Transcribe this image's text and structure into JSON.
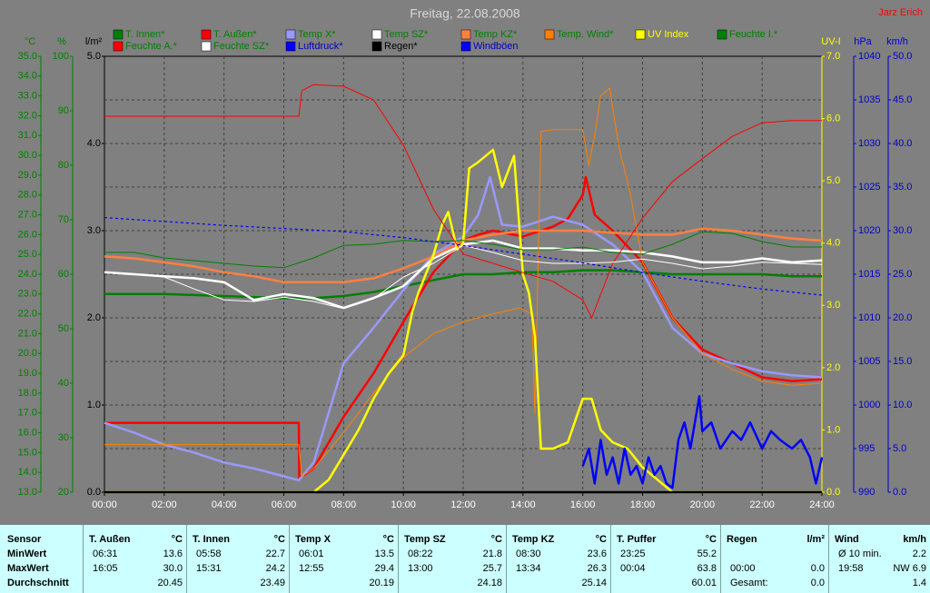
{
  "chart_data": {
    "type": "line",
    "title": "Freitag, 22.08.2008",
    "author": "Jarz Erich",
    "xlim": [
      0,
      24
    ],
    "xticks": [
      {
        "value": 0,
        "label": "00:00"
      },
      {
        "value": 2,
        "label": "02:00"
      },
      {
        "value": 4,
        "label": "04:00"
      },
      {
        "value": 6,
        "label": "06:00"
      },
      {
        "value": 8,
        "label": "08:00"
      },
      {
        "value": 10,
        "label": "10:00"
      },
      {
        "value": 12,
        "label": "12:00"
      },
      {
        "value": 14,
        "label": "14:00"
      },
      {
        "value": 16,
        "label": "16:00"
      },
      {
        "value": 18,
        "label": "18:00"
      },
      {
        "value": 20,
        "label": "20:00"
      },
      {
        "value": 22,
        "label": "22:00"
      },
      {
        "value": 24,
        "label": "24:00"
      }
    ],
    "axes": [
      {
        "label": "°C",
        "color": "#008000",
        "side": "left",
        "lim": [
          13,
          35
        ],
        "ticks": [
          {
            "value": 13,
            "label": "13.0"
          },
          {
            "value": 14,
            "label": "14.0"
          },
          {
            "value": 15,
            "label": "15.0"
          },
          {
            "value": 16,
            "label": "16.0"
          },
          {
            "value": 17,
            "label": "17.0"
          },
          {
            "value": 18,
            "label": "18.0"
          },
          {
            "value": 19,
            "label": "19.0"
          },
          {
            "value": 20,
            "label": "20.0"
          },
          {
            "value": 21,
            "label": "21.0"
          },
          {
            "value": 22,
            "label": "22.0"
          },
          {
            "value": 23,
            "label": "23.0"
          },
          {
            "value": 24,
            "label": "24.0"
          },
          {
            "value": 25,
            "label": "25.0"
          },
          {
            "value": 26,
            "label": "26.0"
          },
          {
            "value": 27,
            "label": "27.0"
          },
          {
            "value": 28,
            "label": "28.0"
          },
          {
            "value": 29,
            "label": "29.0"
          },
          {
            "value": 30,
            "label": "30.0"
          },
          {
            "value": 31,
            "label": "31.0"
          },
          {
            "value": 32,
            "label": "32.0"
          },
          {
            "value": 33,
            "label": "33.0"
          },
          {
            "value": 34,
            "label": "34.0"
          },
          {
            "value": 35,
            "label": "35.0"
          }
        ]
      },
      {
        "label": "%",
        "color": "#008000",
        "side": "left",
        "lim": [
          20,
          100
        ],
        "ticks": [
          20,
          30,
          40,
          50,
          60,
          70,
          80,
          90,
          100
        ]
      },
      {
        "label": "l/m²",
        "color": "#000000",
        "side": "left",
        "lim": [
          0,
          5
        ],
        "ticks": [
          {
            "value": 0,
            "label": "0.0"
          },
          {
            "value": 1,
            "label": "1.0"
          },
          {
            "value": 2,
            "label": "2.0"
          },
          {
            "value": 3,
            "label": "3.0"
          },
          {
            "value": 4,
            "label": "4.0"
          },
          {
            "value": 5,
            "label": "5.0"
          }
        ]
      },
      {
        "label": "UV-I",
        "color": "#ffff00",
        "side": "right",
        "lim": [
          0,
          7
        ],
        "ticks": [
          {
            "value": 0,
            "label": "0.0"
          },
          {
            "value": 1,
            "label": "1.0"
          },
          {
            "value": 2,
            "label": "2.0"
          },
          {
            "value": 3,
            "label": "3.0"
          },
          {
            "value": 4,
            "label": "4.0"
          },
          {
            "value": 5,
            "label": "5.0"
          },
          {
            "value": 6,
            "label": "6.0"
          },
          {
            "value": 7,
            "label": "7.0"
          }
        ]
      },
      {
        "label": "hPa",
        "color": "#0000cc",
        "side": "right",
        "grid": true,
        "lim": [
          990,
          1040
        ],
        "ticks": [
          990,
          995,
          1000,
          1005,
          1010,
          1015,
          1020,
          1025,
          1030,
          1035,
          1040
        ]
      },
      {
        "label": "km/h",
        "color": "#0000cc",
        "side": "right",
        "lim": [
          0,
          50
        ],
        "ticks": [
          {
            "value": 0,
            "label": "0.0"
          },
          {
            "value": 5,
            "label": "5.0"
          },
          {
            "value": 10,
            "label": "10.0"
          },
          {
            "value": 15,
            "label": "15.0"
          },
          {
            "value": 20,
            "label": "20.0"
          },
          {
            "value": 25,
            "label": "25.0"
          },
          {
            "value": 30,
            "label": "30.0"
          },
          {
            "value": 35,
            "label": "35.0"
          },
          {
            "value": 40,
            "label": "40.0"
          },
          {
            "value": 45,
            "label": "45.0"
          },
          {
            "value": 50,
            "label": "50.0"
          }
        ]
      }
    ],
    "series": [
      {
        "name": "T. Innen*",
        "color": "#008000",
        "axis": 0,
        "style": "thick",
        "x": [
          0,
          2,
          4,
          6,
          7,
          8,
          9,
          10,
          11,
          12,
          13,
          14,
          15,
          16,
          17,
          18,
          19,
          20,
          21,
          22,
          23,
          24
        ],
        "values": [
          23.0,
          23.0,
          22.9,
          22.8,
          22.8,
          22.9,
          23.1,
          23.4,
          23.7,
          24.0,
          24.0,
          24.1,
          24.1,
          24.2,
          24.2,
          24.1,
          24.0,
          24.0,
          24.0,
          24.0,
          23.9,
          23.9
        ]
      },
      {
        "name": "T. Außen*",
        "color": "#ff0000",
        "axis": 0,
        "style": "thick",
        "x": [
          0,
          6.5,
          6.52,
          7,
          8,
          9,
          10,
          11,
          12,
          12.5,
          13,
          14,
          15,
          15.5,
          16,
          16.1,
          16.4,
          17,
          18,
          19,
          20,
          21,
          22,
          23,
          24
        ],
        "values": [
          16.5,
          16.5,
          13.7,
          14.2,
          16.8,
          19.0,
          21.6,
          24.1,
          25.7,
          26.0,
          26.2,
          25.9,
          26.4,
          26.8,
          28.0,
          28.9,
          27.0,
          26.2,
          24.6,
          21.8,
          20.2,
          19.5,
          18.8,
          18.6,
          18.7
        ]
      },
      {
        "name": "Temp X*",
        "color": "#9999ff",
        "axis": 0,
        "style": "thick",
        "x": [
          0,
          1,
          2,
          3,
          4,
          5,
          6,
          6.5,
          7,
          8,
          9,
          10,
          11,
          12,
          12.5,
          12.9,
          13.3,
          14,
          15,
          16,
          17,
          18,
          19,
          20,
          21,
          22,
          23,
          24
        ],
        "values": [
          16.5,
          16.0,
          15.4,
          15.0,
          14.5,
          14.2,
          13.8,
          13.6,
          14.5,
          19.5,
          21.3,
          23.2,
          25.0,
          25.9,
          27.0,
          28.9,
          26.5,
          26.4,
          26.9,
          26.5,
          25.5,
          24.1,
          21.3,
          20.0,
          19.5,
          19.1,
          18.9,
          18.8
        ]
      },
      {
        "name": "Temp SZ*",
        "color": "#ffffff",
        "axis": 0,
        "style": "thick",
        "x": [
          0,
          1,
          2,
          3,
          4,
          5,
          6,
          7,
          8,
          9,
          10,
          11,
          12,
          13,
          14,
          15,
          16,
          17,
          18,
          19,
          20,
          21,
          22,
          23,
          24
        ],
        "values": [
          24.1,
          24.0,
          23.9,
          23.8,
          23.6,
          22.7,
          23.0,
          22.8,
          22.3,
          22.8,
          23.4,
          24.8,
          25.5,
          25.7,
          25.3,
          25.3,
          25.2,
          25.2,
          25.1,
          24.9,
          24.6,
          24.6,
          24.8,
          24.6,
          24.7
        ]
      },
      {
        "name": "Temp KZ*",
        "color": "#ff8040",
        "axis": 0,
        "style": "thick",
        "x": [
          0,
          1,
          2,
          3,
          4,
          5,
          6,
          7,
          8,
          9,
          10,
          11,
          12,
          13,
          14,
          15,
          16,
          17,
          18,
          19,
          20,
          21,
          22,
          23,
          24
        ],
        "values": [
          24.9,
          24.8,
          24.6,
          24.4,
          24.1,
          23.9,
          23.6,
          23.6,
          23.6,
          23.8,
          24.3,
          24.9,
          25.7,
          26.0,
          26.2,
          26.2,
          26.2,
          26.1,
          26.0,
          26.0,
          26.3,
          26.2,
          26.0,
          25.8,
          25.7
        ]
      },
      {
        "name": "Temp. Wind*",
        "color": "#ff8000",
        "axis": 0,
        "style": "thin",
        "x": [
          0,
          6.5,
          6.6,
          7,
          8,
          9,
          10,
          11,
          12,
          13,
          13.9,
          14.3,
          14.4,
          14.6,
          15,
          16,
          16.2,
          16.4,
          16.6,
          16.9,
          17.2,
          17.6,
          18,
          19,
          20,
          21,
          22,
          23,
          24
        ],
        "values": [
          15.4,
          15.4,
          13.8,
          14.2,
          16.0,
          18.0,
          19.8,
          21.0,
          21.6,
          22.0,
          22.3,
          22.0,
          17.0,
          31.2,
          31.3,
          31.3,
          29.5,
          31.0,
          33.0,
          33.4,
          30.5,
          28.0,
          24.6,
          21.8,
          20.0,
          19.2,
          18.6,
          18.4,
          18.5
        ]
      },
      {
        "name": "UV Index",
        "color": "#ffff00",
        "axis": 3,
        "style": "thick",
        "x": [
          0,
          7,
          7.5,
          8,
          8.5,
          9,
          9.5,
          10,
          10.3,
          10.5,
          11,
          11.3,
          11.5,
          11.8,
          12,
          12.2,
          12.5,
          13,
          13.3,
          13.7,
          14,
          14.2,
          14.4,
          14.6,
          15,
          15.5,
          16,
          16.3,
          16.6,
          17,
          17.5,
          18,
          18.5,
          19,
          24
        ],
        "values": [
          0,
          0,
          0.2,
          0.6,
          1.0,
          1.5,
          1.9,
          2.2,
          2.9,
          3.2,
          3.8,
          4.3,
          4.5,
          3.9,
          4.0,
          5.2,
          5.3,
          5.5,
          4.9,
          5.4,
          3.5,
          3.2,
          2.5,
          0.7,
          0.7,
          0.8,
          1.5,
          1.5,
          1.0,
          0.8,
          0.7,
          0.4,
          0.2,
          0,
          0
        ]
      },
      {
        "name": "Feuchte I.*",
        "color": "#008000",
        "axis": 1,
        "style": "thin",
        "x": [
          0,
          1,
          2,
          3,
          4,
          5,
          6,
          7,
          8,
          9,
          10,
          11,
          12,
          13,
          14,
          15,
          16,
          17,
          18,
          19,
          20,
          21,
          22,
          23,
          24
        ],
        "values": [
          64,
          64,
          63,
          62.5,
          62,
          61.5,
          61.2,
          63,
          65.3,
          65.5,
          66.2,
          66,
          66.2,
          65.5,
          64.5,
          64.5,
          65,
          64,
          63.7,
          65.5,
          67.8,
          67.5,
          66,
          65,
          65
        ]
      },
      {
        "name": "Feuchte A.*",
        "color": "#ff0000",
        "axis": 1,
        "style": "thin",
        "x": [
          0,
          6.5,
          6.6,
          7,
          8,
          9,
          10,
          11,
          12,
          13,
          14,
          15,
          16,
          16.3,
          17,
          18,
          19,
          20,
          21,
          22,
          23,
          24
        ],
        "values": [
          89,
          89,
          93.7,
          94.8,
          94.5,
          92,
          83.7,
          72,
          63.7,
          62,
          60.3,
          58.7,
          55.3,
          52,
          62,
          70.3,
          77,
          81.2,
          85.3,
          87.8,
          88.2,
          88.2
        ]
      },
      {
        "name": "Feuchte SZ*",
        "color": "#ffffff",
        "axis": 1,
        "style": "thin",
        "x": [
          0,
          1,
          2,
          3,
          4,
          5,
          6,
          7,
          8,
          9,
          10,
          11,
          12,
          13,
          14,
          15,
          16,
          17,
          18,
          19,
          20,
          21,
          22,
          23,
          24
        ],
        "values": [
          60.3,
          60,
          59.5,
          57.3,
          55.3,
          55,
          55.8,
          55,
          53.7,
          55.5,
          59.5,
          62,
          65.3,
          64,
          62.5,
          62,
          62,
          62.2,
          62.8,
          62,
          61,
          61.5,
          62.2,
          62,
          61.8
        ]
      },
      {
        "name": "Luftdruck*",
        "color": "#0000ff",
        "axis": 4,
        "style": "dotted",
        "x": [
          0,
          4,
          8,
          10,
          12,
          14,
          16,
          18,
          20,
          22,
          24
        ],
        "values": [
          1021.5,
          1020.6,
          1019.9,
          1019.2,
          1018.3,
          1017.3,
          1016.3,
          1015.2,
          1014.2,
          1013.3,
          1012.6
        ]
      },
      {
        "name": "Regen*",
        "color": "#000000",
        "axis": 2,
        "style": "thick",
        "x": [
          0,
          24
        ],
        "values": [
          0,
          0
        ]
      },
      {
        "name": "Windböen",
        "color": "#0000ff",
        "axis": 5,
        "style": "thick",
        "x": [
          16,
          16.2,
          16.4,
          16.6,
          16.8,
          17,
          17.2,
          17.4,
          17.6,
          17.8,
          18,
          18.2,
          18.4,
          18.6,
          18.8,
          19,
          19.2,
          19.4,
          19.6,
          19.8,
          19.9,
          20,
          20.3,
          20.6,
          21,
          21.3,
          21.6,
          22,
          22.3,
          22.6,
          23,
          23.3,
          23.6,
          23.8,
          24
        ],
        "values": [
          3,
          5,
          1,
          6,
          2,
          4,
          1,
          5,
          2,
          3,
          1,
          4,
          2,
          3,
          1,
          0.5,
          6,
          8,
          5,
          9,
          11,
          7,
          8,
          5,
          7,
          6,
          8,
          5,
          7,
          6,
          5,
          6,
          4,
          1,
          4
        ]
      }
    ]
  },
  "table": {
    "columns": [
      {
        "name": "Sensor"
      },
      {
        "name": "T. Außen",
        "unit": "°C"
      },
      {
        "name": "T. Innen",
        "unit": "°C"
      },
      {
        "name": "Temp X",
        "unit": "°C"
      },
      {
        "name": "Temp SZ",
        "unit": "°C"
      },
      {
        "name": "Temp KZ",
        "unit": "°C"
      },
      {
        "name": "T. Puffer",
        "unit": "°C"
      },
      {
        "name": "Regen",
        "unit": "l/m²"
      },
      {
        "name": "Wind",
        "unit": "km/h"
      }
    ],
    "rows": [
      {
        "label": "MinWert",
        "cells": [
          [
            "06:31",
            "13.6"
          ],
          [
            "05:58",
            "22.7"
          ],
          [
            "06:01",
            "13.5"
          ],
          [
            "08:22",
            "21.8"
          ],
          [
            "08:30",
            "23.6"
          ],
          [
            "23:25",
            "55.2"
          ],
          [],
          [
            "Ø 10 min.",
            "2.2"
          ]
        ]
      },
      {
        "label": "MaxWert",
        "cells": [
          [
            "16:05",
            "30.0"
          ],
          [
            "15:31",
            "24.2"
          ],
          [
            "12:55",
            "29.4"
          ],
          [
            "13:00",
            "25.7"
          ],
          [
            "13:34",
            "26.3"
          ],
          [
            "00:04",
            "63.8"
          ],
          [
            "00:00",
            "0.0"
          ],
          [
            "19:58",
            "NW 6.9"
          ]
        ]
      },
      {
        "label": "Durchschnitt",
        "cells": [
          [
            "20.45"
          ],
          [
            "23.49"
          ],
          [
            "20.19"
          ],
          [
            "24.18"
          ],
          [
            "25.14"
          ],
          [
            "60.01"
          ],
          [
            "Gesamt:",
            "0.0"
          ],
          [
            "1.4"
          ]
        ]
      }
    ]
  }
}
